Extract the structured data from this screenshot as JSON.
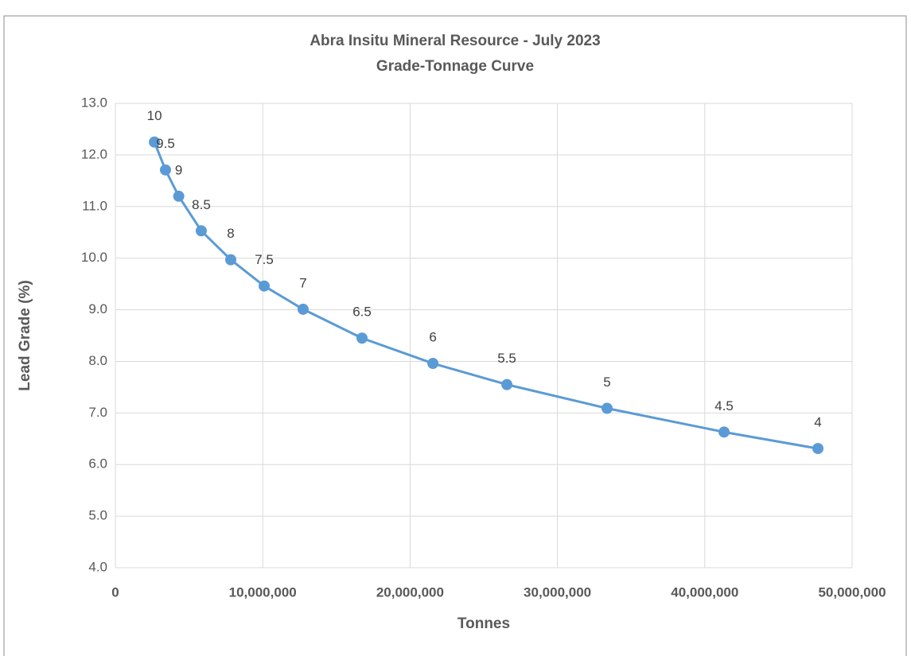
{
  "chart_data": {
    "type": "line",
    "title": "Abra Insitu Mineral Resource - July 2023",
    "subtitle": "Grade-Tonnage Curve",
    "x_label": "Tonnes",
    "y_label": "Lead Grade (%)",
    "grid": true,
    "xlim": [
      0,
      50000000
    ],
    "xticks": [
      0,
      {
        "value": 10000000,
        "label": "10,000,000"
      },
      {
        "value": 20000000,
        "label": "20,000,000"
      },
      {
        "value": 30000000,
        "label": "30,000,000"
      },
      {
        "value": 40000000,
        "label": "40,000,000"
      },
      {
        "value": 50000000,
        "label": "50,000,000"
      }
    ],
    "ylim": [
      4,
      13
    ],
    "yticks": [
      {
        "value": 4,
        "label": "4.0"
      },
      {
        "value": 5,
        "label": "5.0"
      },
      {
        "value": 6,
        "label": "6.0"
      },
      {
        "value": 7,
        "label": "7.0"
      },
      {
        "value": 8,
        "label": "8.0"
      },
      {
        "value": 9,
        "label": "9.0"
      },
      {
        "value": 10,
        "label": "10.0"
      },
      {
        "value": 11,
        "label": "11.0"
      },
      {
        "value": 12,
        "label": "12.0"
      },
      {
        "value": 13,
        "label": "13.0"
      }
    ],
    "series": [
      {
        "color": "#5b9bd5",
        "x": [
          2650000,
          3400000,
          4300000,
          5830000,
          7830000,
          10100000,
          12740000,
          16740000,
          21550000,
          26570000,
          33370000,
          41310000,
          47680000
        ],
        "values": [
          12.25,
          11.71,
          11.2,
          10.53,
          9.97,
          9.46,
          9.01,
          8.45,
          7.96,
          7.55,
          7.09,
          6.63,
          6.31
        ],
        "labels": [
          10,
          9.5,
          9,
          8.5,
          8,
          7.5,
          7,
          6.5,
          6,
          5.5,
          5,
          4.5,
          4
        ]
      }
    ]
  }
}
